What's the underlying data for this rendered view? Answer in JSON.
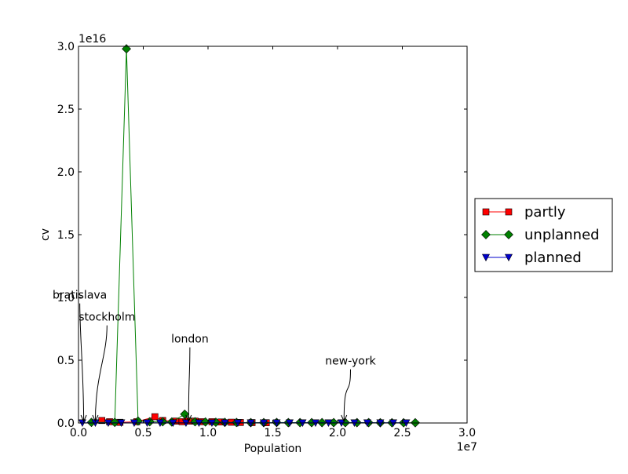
{
  "chart_data": {
    "type": "line",
    "title": "",
    "xlabel": "Population",
    "ylabel": "cv",
    "x_offset_label": "1e7",
    "y_offset_label": "1e16",
    "xlim": [
      0,
      30000000
    ],
    "ylim": [
      0,
      30000000000000000
    ],
    "xticks": [
      0,
      5000000,
      10000000,
      15000000,
      20000000,
      25000000,
      30000000
    ],
    "xtick_labels": [
      "0.0",
      "0.5",
      "1.0",
      "1.5",
      "2.0",
      "2.5",
      "3.0"
    ],
    "yticks": [
      0,
      5000000000000000,
      10000000000000000,
      15000000000000000,
      20000000000000000,
      25000000000000000,
      30000000000000000
    ],
    "ytick_labels": [
      "0.0",
      "0.5",
      "1.0",
      "1.5",
      "2.0",
      "2.5",
      "3.0"
    ],
    "grid": false,
    "legend": "outside-right",
    "series": [
      {
        "name": "partly",
        "color": "#ff0000",
        "marker": "square",
        "x": [
          1800000,
          2400000,
          3200000,
          4500000,
          5900000,
          6500000,
          7500000,
          8000000,
          8500000,
          9000000,
          9500000,
          10300000,
          11000000,
          11800000,
          12500000,
          13400000,
          14500000
        ],
        "y": [
          200000000000000,
          100000000000000,
          50000000000000,
          100000000000000,
          500000000000000,
          200000000000000,
          150000000000000,
          100000000000000,
          150000000000000,
          150000000000000,
          100000000000000,
          100000000000000,
          80000000000000,
          60000000000000,
          40000000000000,
          30000000000000,
          20000000000000
        ]
      },
      {
        "name": "unplanned",
        "color": "#008000",
        "marker": "diamond",
        "x": [
          1000000,
          2800000,
          3700000,
          4600000,
          5500000,
          6500000,
          7200000,
          8200000,
          9000000,
          9800000,
          10600000,
          11300000,
          12200000,
          13300000,
          14300000,
          15300000,
          16200000,
          17100000,
          18000000,
          18800000,
          19700000,
          20600000,
          21500000,
          22400000,
          23300000,
          24200000,
          25100000,
          26000000
        ],
        "y": [
          50000000000000,
          50000000000000,
          29800000000000000,
          150000000000000,
          100000000000000,
          100000000000000,
          80000000000000,
          700000000000000,
          100000000000000,
          80000000000000,
          60000000000000,
          50000000000000,
          40000000000000,
          30000000000000,
          30000000000000,
          40000000000000,
          30000000000000,
          30000000000000,
          30000000000000,
          30000000000000,
          30000000000000,
          30000000000000,
          30000000000000,
          30000000000000,
          20000000000000,
          20000000000000,
          20000000000000,
          20000000000000
        ]
      },
      {
        "name": "planned",
        "color": "#0000cd",
        "marker": "triangle-down",
        "x": [
          300000,
          1300000,
          2300000,
          3300000,
          4300000,
          5300000,
          6300000,
          7300000,
          8300000,
          9300000,
          10300000,
          11300000,
          12300000,
          13300000,
          14300000,
          15300000,
          16300000,
          17300000,
          18300000,
          19300000,
          20300000,
          21300000,
          22300000,
          23300000,
          24300000,
          25300000
        ],
        "y": [
          10000000000000,
          10000000000000,
          10000000000000,
          10000000000000,
          10000000000000,
          10000000000000,
          10000000000000,
          10000000000000,
          10000000000000,
          10000000000000,
          10000000000000,
          10000000000000,
          10000000000000,
          10000000000000,
          10000000000000,
          10000000000000,
          10000000000000,
          10000000000000,
          10000000000000,
          10000000000000,
          10000000000000,
          10000000000000,
          10000000000000,
          10000000000000,
          10000000000000,
          10000000000000
        ]
      }
    ],
    "annotations": [
      {
        "text": "bratislava",
        "x": 400000,
        "y": 0,
        "text_x": 100000,
        "text_y": 9900000000000000
      },
      {
        "text": "stockholm",
        "x": 1300000,
        "y": 0,
        "text_x": 2200000,
        "text_y": 8150000000000000
      },
      {
        "text": "london",
        "x": 8500000,
        "y": 0,
        "text_x": 8600000,
        "text_y": 6400000000000000
      },
      {
        "text": "new-york",
        "x": 20500000,
        "y": 0,
        "text_x": 21000000,
        "text_y": 4650000000000000
      }
    ]
  }
}
